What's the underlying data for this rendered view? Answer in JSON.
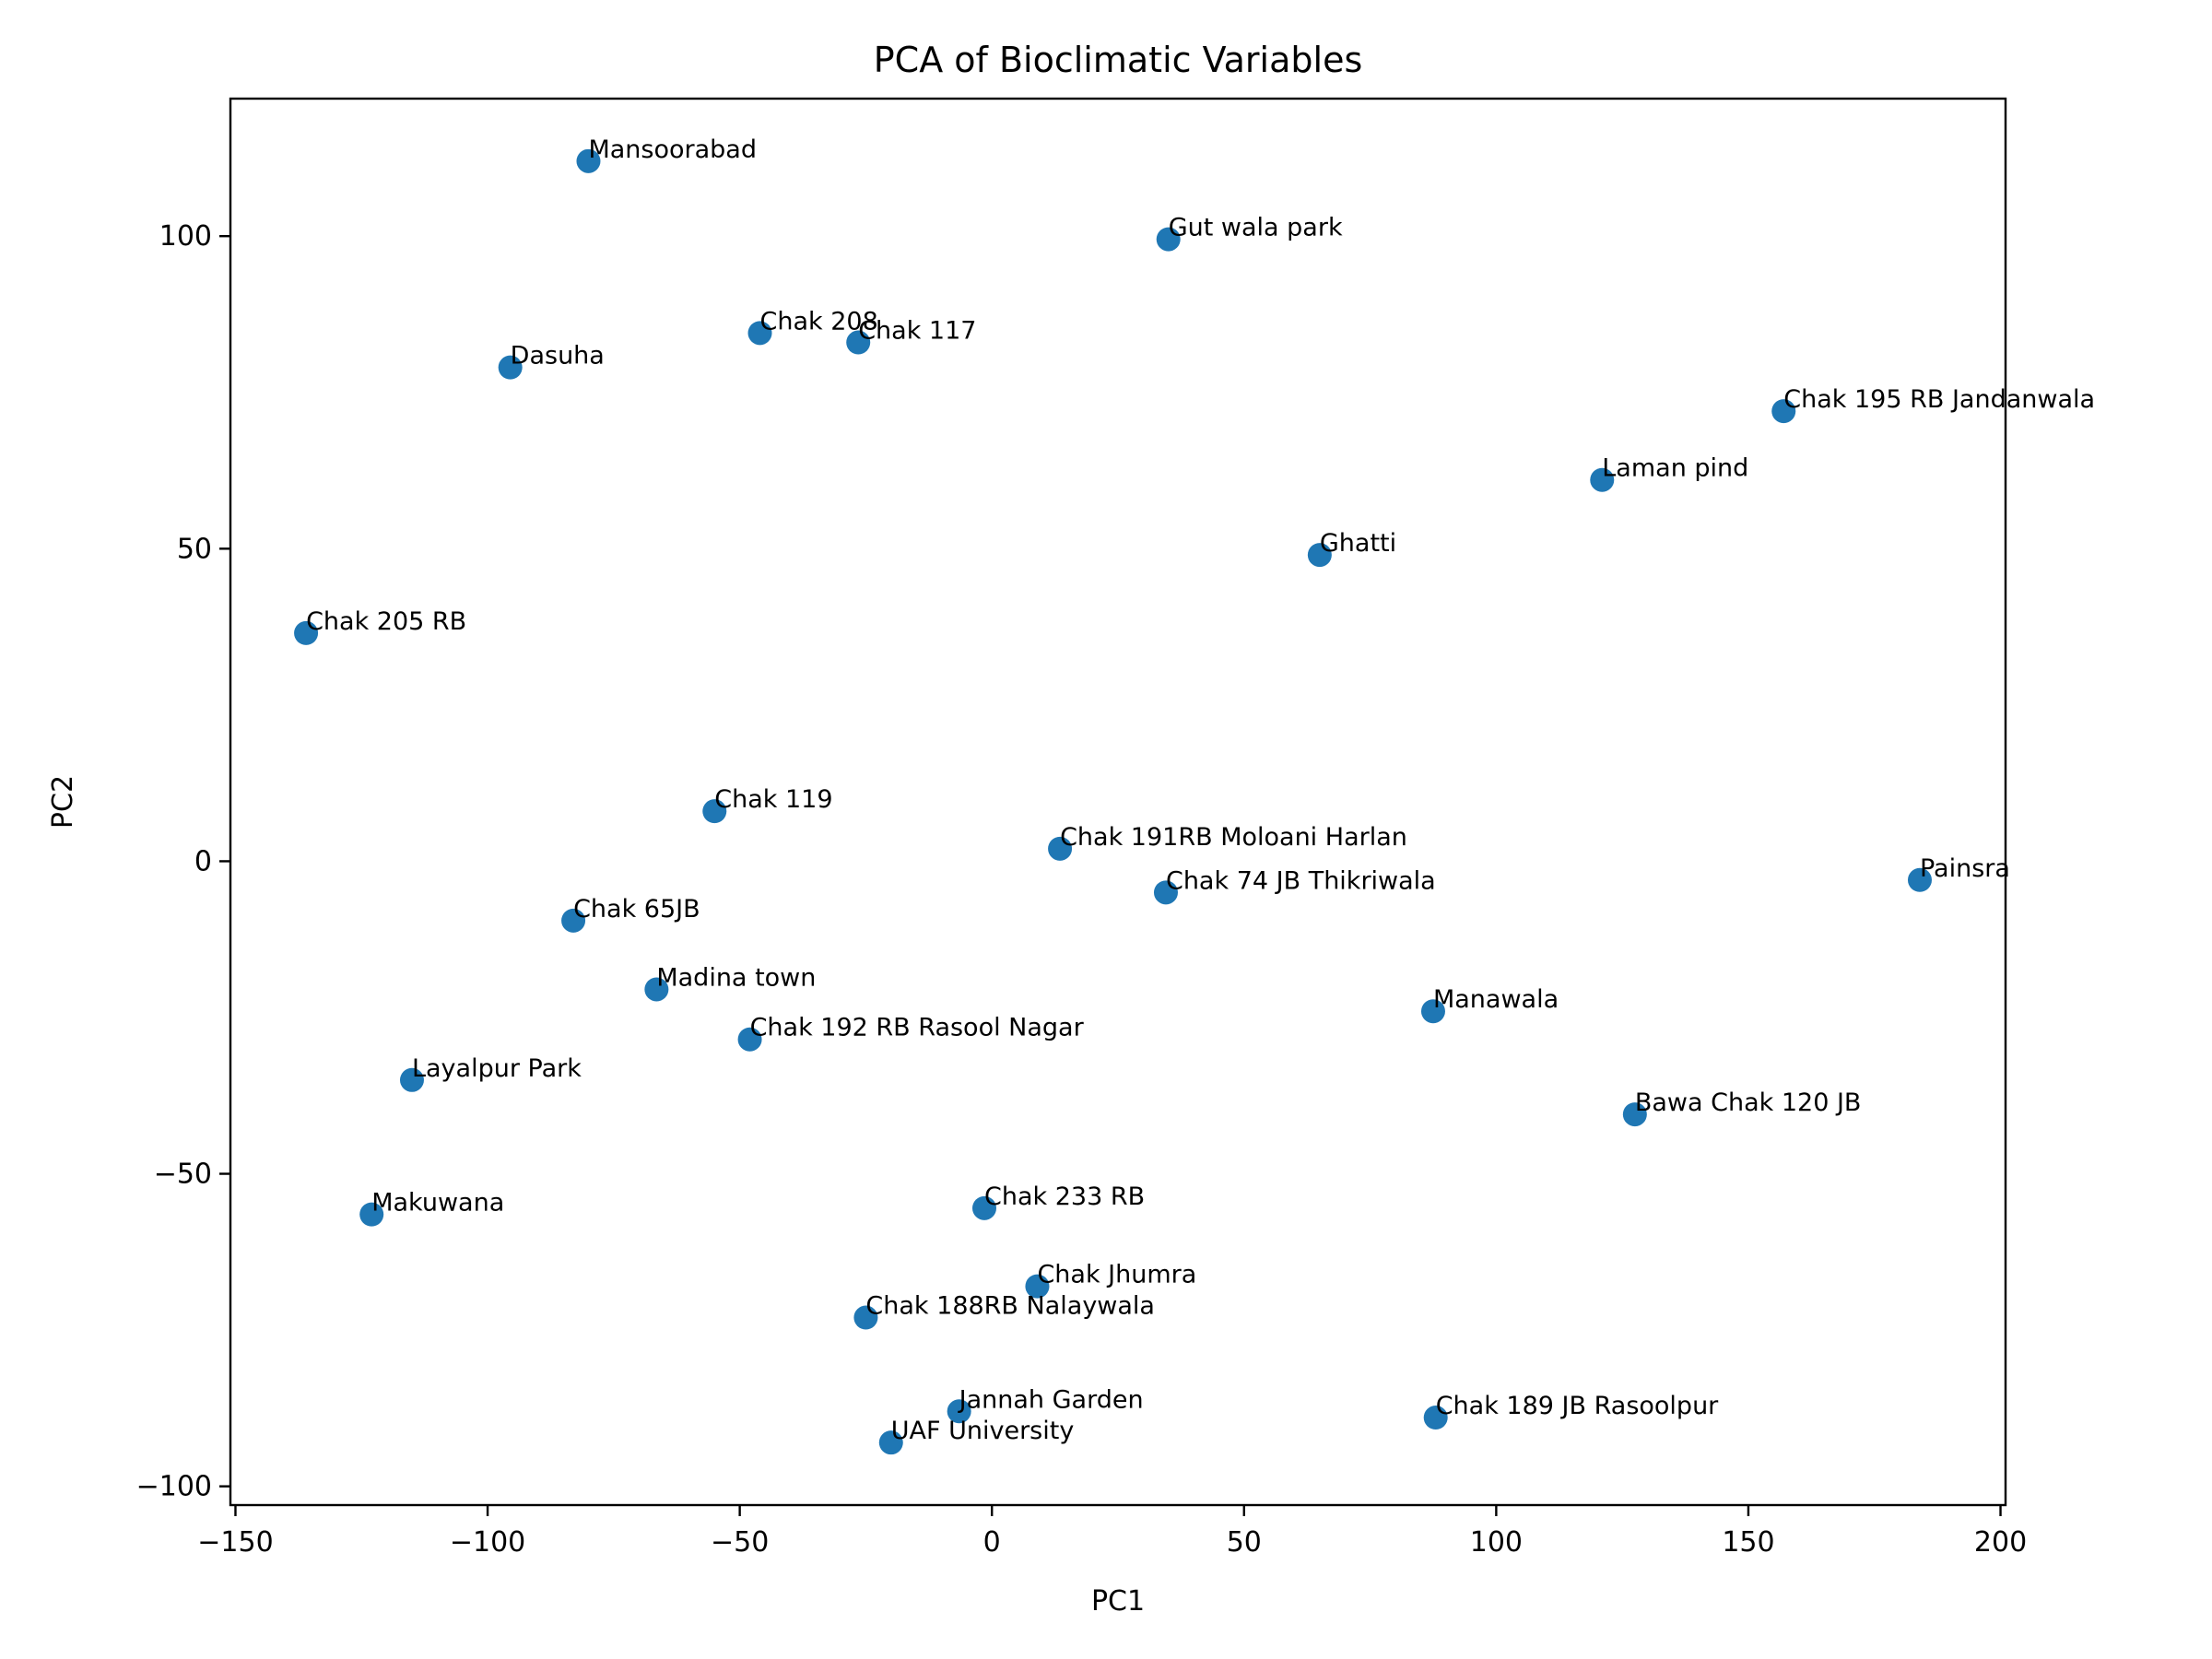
{
  "chart_data": {
    "type": "scatter",
    "title": "PCA of Bioclimatic Variables",
    "xlabel": "PC1",
    "ylabel": "PC2",
    "xlim": [
      -151,
      201
    ],
    "ylim": [
      -103,
      122
    ],
    "xticks": [
      -150,
      -100,
      -50,
      0,
      50,
      100,
      150,
      200
    ],
    "yticks": [
      -100,
      -50,
      0,
      50,
      100
    ],
    "grid": false,
    "marker_color": "#1f77b4",
    "points": [
      {
        "label": "Mansoorabad",
        "x": -80,
        "y": 112
      },
      {
        "label": "Gut wala park",
        "x": 35,
        "y": 99.5
      },
      {
        "label": "Chak 208",
        "x": -46,
        "y": 84.5
      },
      {
        "label": "Chak 117",
        "x": -26.5,
        "y": 83
      },
      {
        "label": "Dasuha",
        "x": -95.5,
        "y": 79
      },
      {
        "label": "Chak 195 RB Jandanwala",
        "x": 157,
        "y": 72
      },
      {
        "label": "Laman pind",
        "x": 121,
        "y": 61
      },
      {
        "label": "Ghatti",
        "x": 65,
        "y": 49
      },
      {
        "label": "Chak 205 RB",
        "x": -136,
        "y": 36.5
      },
      {
        "label": "Chak 119",
        "x": -55,
        "y": 8
      },
      {
        "label": "Chak 191RB Moloani Harlan",
        "x": 13.5,
        "y": 2
      },
      {
        "label": "Chak 74 JB Thikriwala",
        "x": 34.5,
        "y": -5
      },
      {
        "label": "Painsra",
        "x": 184,
        "y": -3
      },
      {
        "label": "Chak 65JB",
        "x": -83,
        "y": -9.5
      },
      {
        "label": "Madina town",
        "x": -66.5,
        "y": -20.5
      },
      {
        "label": "Chak 192 RB Rasool Nagar",
        "x": -48,
        "y": -28.5
      },
      {
        "label": "Manawala",
        "x": 87.5,
        "y": -24
      },
      {
        "label": "Layalpur Park",
        "x": -115,
        "y": -35
      },
      {
        "label": "Bawa Chak 120 JB",
        "x": 127.5,
        "y": -40.5
      },
      {
        "label": "Makuwana",
        "x": -123,
        "y": -56.5
      },
      {
        "label": "Chak 233 RB",
        "x": -1.5,
        "y": -55.5
      },
      {
        "label": "Chak Jhumra",
        "x": 9,
        "y": -68
      },
      {
        "label": "Chak 188RB Nalaywala",
        "x": -25,
        "y": -73
      },
      {
        "label": "Jannah Garden",
        "x": -6.5,
        "y": -88
      },
      {
        "label": "UAF University",
        "x": -20,
        "y": -93
      },
      {
        "label": "Chak 189 JB Rasoolpur",
        "x": 88,
        "y": -89
      }
    ]
  }
}
